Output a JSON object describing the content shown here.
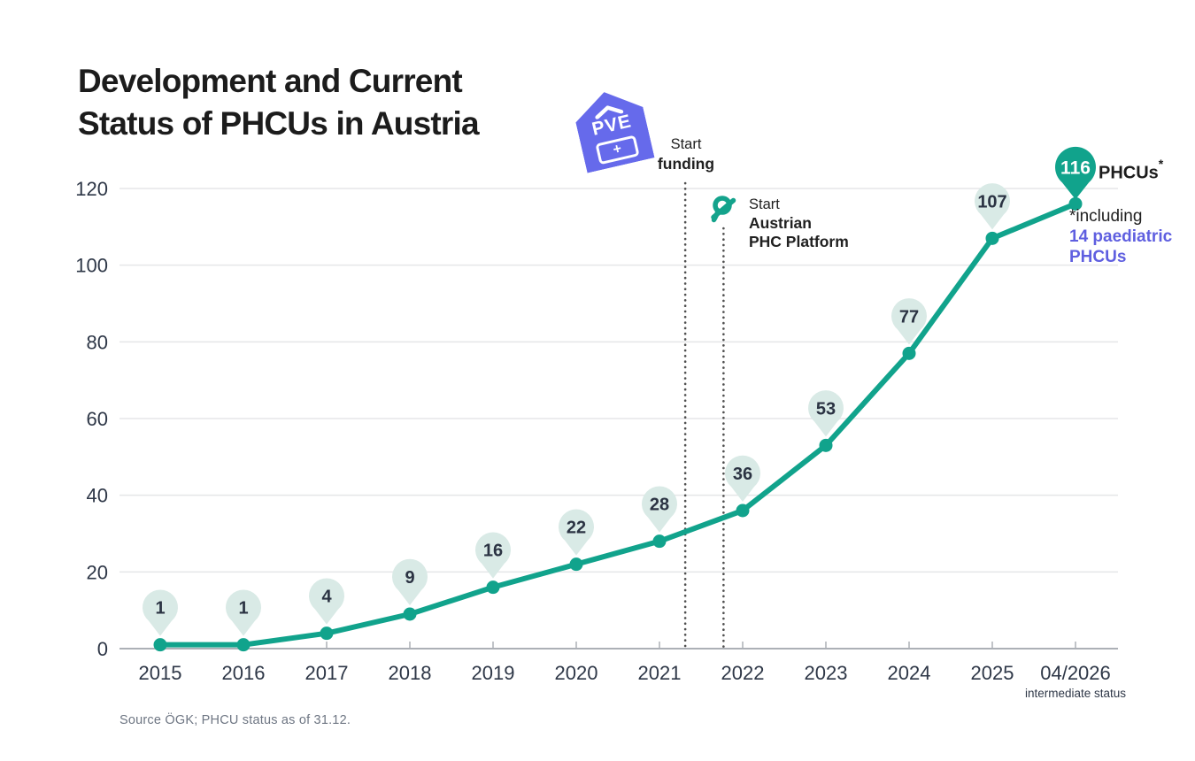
{
  "title": {
    "line1": "Development and Current",
    "line2": "Status of PHCUs in Austria"
  },
  "logo": {
    "text": "PVE",
    "plus": "+"
  },
  "events": {
    "funding": {
      "line1": "Start",
      "line2": "funding"
    },
    "platform": {
      "line1": "Start",
      "line2": "Austrian",
      "line3": "PHC Platform"
    }
  },
  "badge": {
    "value": "116",
    "label": "PHCUs",
    "asterisk": "*"
  },
  "footnote": {
    "line1": "*including",
    "line2": "14 paediatric",
    "line3": "PHCUs"
  },
  "source": "Source ÖGK; PHCU status as of 31.12.",
  "colors": {
    "teal": "#11A38C",
    "pale_pin": "#D9EAE6",
    "purple": "#5F5FE0",
    "logo_purple": "#666AEB",
    "axis_text": "#2E3747",
    "grid": "#E5E6E8",
    "axis_line": "#ACB0B6",
    "dotted": "#4F4F4F",
    "title": "#1C1C1C",
    "pin_number": "#2B3343",
    "source_text": "#6E7683"
  },
  "chart_data": {
    "type": "line",
    "title": "Development and Current Status of PHCUs in Austria",
    "categories": [
      "2015",
      "2016",
      "2017",
      "2018",
      "2019",
      "2020",
      "2021",
      "2022",
      "2023",
      "2024",
      "2025",
      "04/2026"
    ],
    "values": [
      1,
      1,
      4,
      9,
      16,
      22,
      28,
      36,
      53,
      77,
      107,
      116
    ],
    "xlabel": "",
    "ylabel": "",
    "ylim": [
      0,
      120
    ],
    "yticks": [
      0,
      20,
      40,
      60,
      80,
      100,
      120
    ],
    "grid": true,
    "legend": false,
    "last_category_note": "intermediate status",
    "final_badge": {
      "value": 116,
      "label": "PHCUs*"
    },
    "event_lines": [
      {
        "label": "Start funding",
        "x_index": 6.31
      },
      {
        "label": "Start Austrian PHC Platform",
        "x_index": 6.77
      }
    ]
  }
}
